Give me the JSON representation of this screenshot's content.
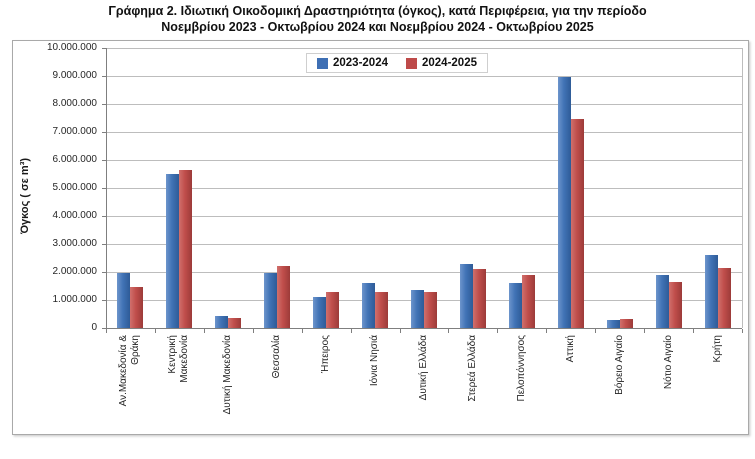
{
  "title": {
    "line1": "Γράφημα 2.  Ιδιωτική Οικοδομική Δραστηριότητα (όγκος), κατά Περιφέρεια, για την περίοδο",
    "line2": "Νοεμβρίου 2023 - Οκτωβρίου 2024 και Νοεμβρίου 2024 - Οκτωβρίου 2025"
  },
  "chart_data": {
    "type": "bar",
    "title": "Γράφημα 2. Ιδιωτική Οικοδομική Δραστηριότητα (όγκος), κατά Περιφέρεια, για την περίοδο Νοεμβρίου 2023 - Οκτωβρίου 2024 και Νοεμβρίου 2024 - Οκτωβρίου 2025",
    "xlabel": "",
    "ylabel": "Όγκος ( σε m³)",
    "ylim": [
      0,
      10000000
    ],
    "ytick_interval": 1000000,
    "ytick_labels": [
      "0",
      "1.000.000",
      "2.000.000",
      "3.000.000",
      "4.000.000",
      "5.000.000",
      "6.000.000",
      "7.000.000",
      "8.000.000",
      "9.000.000",
      "10.000.000"
    ],
    "grid": true,
    "legend_position": "top-center",
    "categories": [
      "Αν.Μακεδονία &\nΘράκη",
      "Κεντρική\nΜακεδονία",
      "Δυτική Μακεδονία",
      "Θεσσαλία",
      "Ήπειρος",
      "Ιόνια Νησιά",
      "Δυτική Ελλάδα",
      "Στερεά Ελλάδα",
      "Πελοπόννησος",
      "Αττική",
      "Βόρειο Αιγαίο",
      "Νότιο Αιγαίο",
      "Κρήτη"
    ],
    "series": [
      {
        "name": "2023-2024",
        "color": "#3E6FB4",
        "gradient": [
          "#6D95CC",
          "#4173B6",
          "#2E5B97"
        ],
        "values": [
          1950000,
          5500000,
          420000,
          1950000,
          1120000,
          1600000,
          1350000,
          2300000,
          1600000,
          8950000,
          280000,
          1900000,
          2600000
        ]
      },
      {
        "name": "2024-2025",
        "color": "#BE4A49",
        "gradient": [
          "#D0706D",
          "#C04E4B",
          "#9C3B39"
        ],
        "values": [
          1450000,
          5650000,
          340000,
          2200000,
          1300000,
          1300000,
          1280000,
          2100000,
          1880000,
          7450000,
          330000,
          1650000,
          2150000
        ]
      }
    ]
  },
  "colors": {
    "gridline": "#bdbdbd",
    "axis": "#7f7f7f",
    "frame_border": "#a9a9a9",
    "text": "#262626"
  }
}
